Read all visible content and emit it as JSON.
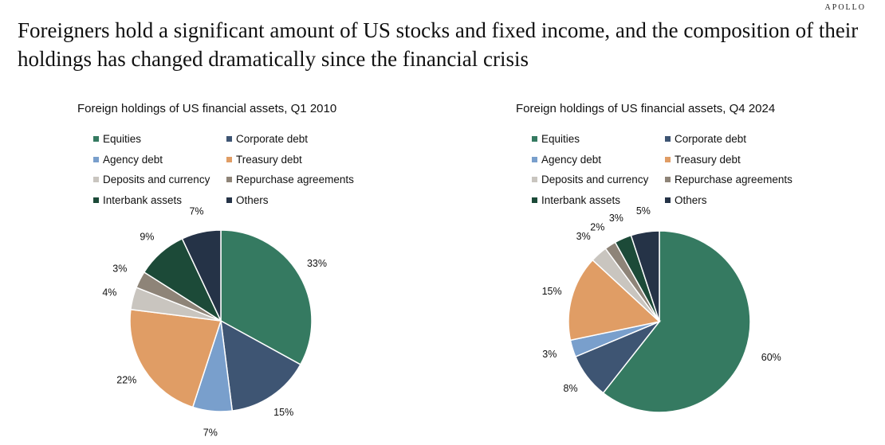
{
  "brand": "APOLLO",
  "headline": "Foreigners hold a significant amount of US stocks and fixed income, and the composition of their holdings has changed dramatically since the financial crisis",
  "chart_data": [
    {
      "type": "pie",
      "title": "Foreign holdings of US financial assets, Q1 2010",
      "categories": [
        "Equities",
        "Corporate debt",
        "Agency debt",
        "Treasury debt",
        "Deposits and currency",
        "Repurchase agreements",
        "Interbank assets",
        "Others"
      ],
      "values": [
        33,
        15,
        7,
        22,
        4,
        3,
        9,
        7
      ],
      "labels": [
        "33%",
        "15%",
        "7%",
        "22%",
        "4%",
        "3%",
        "9%",
        "7%"
      ],
      "colors": [
        "#357a61",
        "#3e5573",
        "#799fcc",
        "#e09d65",
        "#c9c5bf",
        "#8e8478",
        "#1c4a38",
        "#253347"
      ],
      "legend_position": "top"
    },
    {
      "type": "pie",
      "title": "Foreign holdings of US financial assets, Q4 2024",
      "categories": [
        "Equities",
        "Corporate debt",
        "Agency debt",
        "Treasury debt",
        "Deposits and currency",
        "Repurchase agreements",
        "Interbank assets",
        "Others"
      ],
      "values": [
        60,
        8,
        3,
        15,
        3,
        2,
        3,
        5
      ],
      "labels": [
        "60%",
        "8%",
        "3%",
        "15%",
        "3%",
        "2%",
        "3%",
        "5%"
      ],
      "colors": [
        "#357a61",
        "#3e5573",
        "#799fcc",
        "#e09d65",
        "#c9c5bf",
        "#8e8478",
        "#1c4a38",
        "#253347"
      ],
      "legend_position": "top"
    }
  ]
}
